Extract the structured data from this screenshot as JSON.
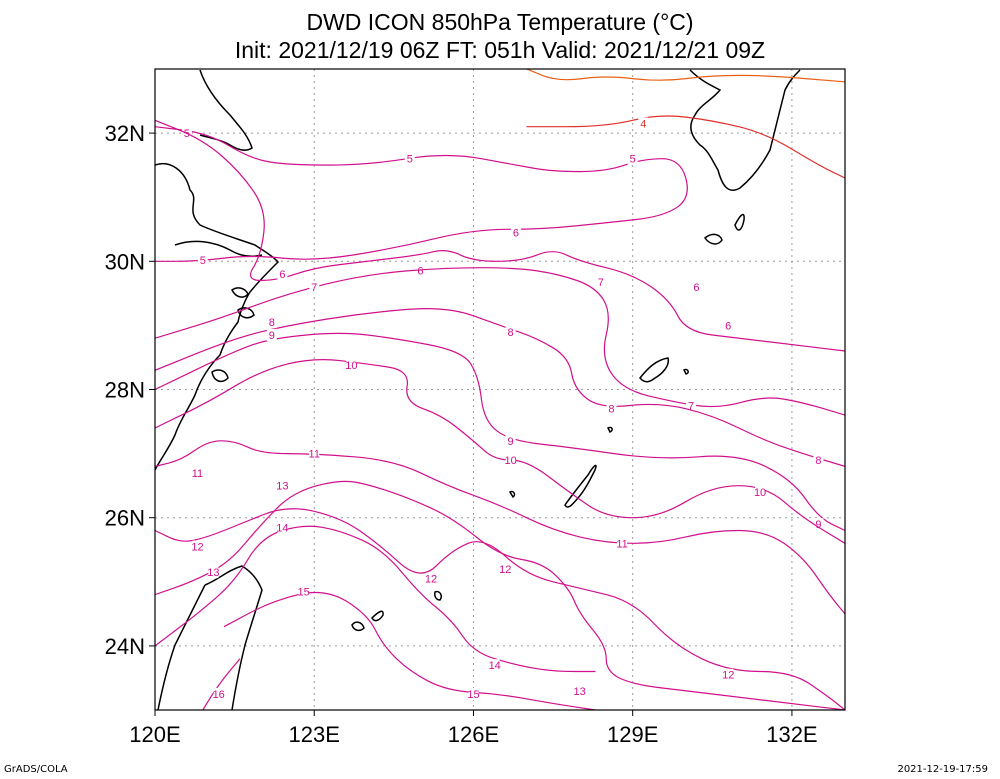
{
  "title_line1": "DWD ICON 850hPa Temperature (°C)",
  "title_line2": "Init: 2021/12/19 06Z  FT: 051h  Valid: 2021/12/21 09Z",
  "footer_left": "GrADS/COLA",
  "footer_right": "2021-12-19-17:59",
  "map": {
    "lon_range": [
      120,
      133
    ],
    "lat_range": [
      23,
      33
    ],
    "lon_ticks": [
      {
        "v": 120,
        "label": "120E"
      },
      {
        "v": 123,
        "label": "123E"
      },
      {
        "v": 126,
        "label": "126E"
      },
      {
        "v": 129,
        "label": "129E"
      },
      {
        "v": 132,
        "label": "132E"
      }
    ],
    "lat_ticks": [
      {
        "v": 24,
        "label": "24N"
      },
      {
        "v": 26,
        "label": "26N"
      },
      {
        "v": 28,
        "label": "28N"
      },
      {
        "v": 30,
        "label": "30N"
      },
      {
        "v": 32,
        "label": "32N"
      }
    ],
    "contour_color": "#d0108c",
    "warm_colors": {
      "3": "#e86018",
      "4": "#e0302c"
    },
    "isotherms": [
      {
        "v": 4,
        "pts": [
          [
            127.0,
            32.1
          ],
          [
            128.5,
            32.1
          ],
          [
            129.5,
            32.3
          ],
          [
            130.5,
            32.2
          ],
          [
            131.5,
            32.0
          ],
          [
            132.5,
            31.5
          ],
          [
            133,
            31.3
          ]
        ],
        "labels": [
          [
            129.2,
            32.15
          ]
        ]
      },
      {
        "v": 5,
        "pts": [
          [
            120,
            32.1
          ],
          [
            121,
            32.0
          ],
          [
            121.8,
            31.6
          ],
          [
            122.5,
            31.5
          ],
          [
            124,
            31.5
          ],
          [
            125.5,
            31.7
          ],
          [
            126.8,
            31.5
          ],
          [
            127.5,
            31.4
          ],
          [
            128.5,
            31.4
          ],
          [
            129.2,
            31.6
          ],
          [
            129.9,
            31.6
          ],
          [
            130.1,
            31.0
          ],
          [
            129.6,
            30.7
          ],
          [
            128.5,
            30.6
          ],
          [
            127.3,
            30.5
          ],
          [
            126.0,
            30.5
          ],
          [
            124.5,
            30.2
          ],
          [
            123.0,
            30.0
          ],
          [
            121.8,
            30.1
          ],
          [
            120.8,
            30.0
          ],
          [
            120,
            30.0
          ]
        ],
        "labels": [
          [
            120.6,
            32.0
          ],
          [
            124.8,
            31.6
          ],
          [
            129.0,
            31.6
          ],
          [
            120.9,
            30.02
          ]
        ]
      },
      {
        "v": 6,
        "pts": [
          [
            120,
            32.2
          ],
          [
            120.9,
            31.9
          ],
          [
            121.6,
            31.4
          ],
          [
            122.1,
            30.8
          ],
          [
            122.0,
            30.1
          ],
          [
            121.7,
            29.7
          ],
          [
            122.3,
            29.7
          ],
          [
            123.0,
            29.9
          ],
          [
            124.0,
            30.0
          ],
          [
            125.0,
            30.1
          ],
          [
            125.5,
            30.2
          ],
          [
            126.0,
            30.0
          ],
          [
            126.9,
            30.0
          ],
          [
            127.5,
            30.2
          ],
          [
            128.0,
            30.0
          ],
          [
            129.0,
            29.8
          ],
          [
            129.7,
            29.4
          ],
          [
            130.0,
            28.9
          ],
          [
            131.0,
            28.8
          ],
          [
            132.0,
            28.7
          ],
          [
            133,
            28.6
          ]
        ],
        "labels": [
          [
            122.4,
            29.8
          ],
          [
            125.0,
            29.86
          ],
          [
            126.8,
            30.45
          ],
          [
            130.2,
            29.6
          ],
          [
            130.8,
            29.0
          ]
        ]
      },
      {
        "v": 7,
        "pts": [
          [
            120,
            28.8
          ],
          [
            121.2,
            29.1
          ],
          [
            122.5,
            29.5
          ],
          [
            124.0,
            29.8
          ],
          [
            125.5,
            29.9
          ],
          [
            126.8,
            29.9
          ],
          [
            127.6,
            29.8
          ],
          [
            128.3,
            29.6
          ],
          [
            128.6,
            29.2
          ],
          [
            128.4,
            28.5
          ],
          [
            128.8,
            28.0
          ],
          [
            129.8,
            27.8
          ],
          [
            130.6,
            27.7
          ],
          [
            131.5,
            27.9
          ],
          [
            132.2,
            27.8
          ],
          [
            133,
            27.6
          ]
        ],
        "labels": [
          [
            123.0,
            29.6
          ],
          [
            128.4,
            29.68
          ],
          [
            130.1,
            27.75
          ]
        ]
      },
      {
        "v": 8,
        "pts": [
          [
            120,
            28.3
          ],
          [
            121.5,
            28.8
          ],
          [
            122.5,
            29.0
          ],
          [
            124.0,
            29.2
          ],
          [
            125.5,
            29.3
          ],
          [
            126.5,
            29.0
          ],
          [
            127.2,
            28.8
          ],
          [
            127.8,
            28.5
          ],
          [
            127.9,
            28.0
          ],
          [
            128.4,
            27.7
          ],
          [
            129.5,
            27.8
          ],
          [
            130.5,
            27.6
          ],
          [
            131.5,
            27.2
          ],
          [
            132.2,
            27.0
          ],
          [
            133,
            26.8
          ]
        ],
        "labels": [
          [
            122.2,
            29.05
          ],
          [
            126.7,
            28.9
          ],
          [
            128.6,
            27.7
          ],
          [
            132.5,
            26.9
          ]
        ]
      },
      {
        "v": 9,
        "pts": [
          [
            120,
            28.0
          ],
          [
            121.5,
            28.6
          ],
          [
            122.2,
            28.8
          ],
          [
            123.5,
            28.9
          ],
          [
            124.5,
            28.8
          ],
          [
            125.8,
            28.6
          ],
          [
            126.1,
            28.2
          ],
          [
            126.2,
            27.5
          ],
          [
            126.7,
            27.2
          ],
          [
            127.8,
            27.1
          ],
          [
            129.5,
            26.9
          ],
          [
            131.0,
            27.0
          ],
          [
            132.0,
            26.6
          ],
          [
            132.5,
            26.0
          ],
          [
            133,
            25.8
          ]
        ],
        "labels": [
          [
            122.2,
            28.85
          ],
          [
            126.7,
            27.2
          ],
          [
            132.5,
            25.9
          ]
        ]
      },
      {
        "v": 10,
        "pts": [
          [
            120,
            27.4
          ],
          [
            121.0,
            27.8
          ],
          [
            122.0,
            28.3
          ],
          [
            123.0,
            28.5
          ],
          [
            124.0,
            28.4
          ],
          [
            124.8,
            28.3
          ],
          [
            124.7,
            27.8
          ],
          [
            125.4,
            27.6
          ],
          [
            126.0,
            27.2
          ],
          [
            126.4,
            26.9
          ],
          [
            127.0,
            26.9
          ],
          [
            127.8,
            26.4
          ],
          [
            128.5,
            26.0
          ],
          [
            129.5,
            26.0
          ],
          [
            130.5,
            26.5
          ],
          [
            131.5,
            26.5
          ],
          [
            132.2,
            26.0
          ],
          [
            133,
            25.6
          ]
        ],
        "labels": [
          [
            123.7,
            28.38
          ],
          [
            126.7,
            26.9
          ],
          [
            131.4,
            26.4
          ]
        ]
      },
      {
        "v": 11,
        "pts": [
          [
            120,
            26.8
          ],
          [
            120.5,
            26.9
          ],
          [
            121.0,
            27.2
          ],
          [
            121.5,
            27.2
          ],
          [
            122.0,
            27.0
          ],
          [
            123.0,
            27.0
          ],
          [
            124.5,
            26.9
          ],
          [
            125.5,
            26.5
          ],
          [
            126.5,
            26.2
          ],
          [
            127.5,
            25.8
          ],
          [
            128.5,
            25.6
          ],
          [
            129.5,
            25.6
          ],
          [
            130.5,
            25.8
          ],
          [
            131.5,
            25.8
          ],
          [
            132.2,
            25.4
          ],
          [
            132.7,
            24.8
          ],
          [
            133,
            24.5
          ]
        ],
        "labels": [
          [
            120.8,
            26.7
          ],
          [
            123.0,
            27.0
          ],
          [
            128.8,
            25.6
          ]
        ]
      },
      {
        "v": 12,
        "pts": [
          [
            120,
            25.8
          ],
          [
            120.5,
            25.6
          ],
          [
            121.0,
            25.7
          ],
          [
            121.6,
            25.9
          ],
          [
            122.5,
            26.2
          ],
          [
            123.5,
            26.0
          ],
          [
            124.2,
            25.6
          ],
          [
            125.0,
            25.0
          ],
          [
            125.6,
            25.5
          ],
          [
            126.2,
            25.7
          ],
          [
            127.0,
            25.1
          ],
          [
            128.0,
            24.9
          ],
          [
            129.0,
            24.7
          ],
          [
            129.8,
            24.0
          ],
          [
            130.8,
            23.6
          ],
          [
            132.0,
            23.6
          ],
          [
            132.7,
            23.2
          ],
          [
            133,
            23.0
          ]
        ],
        "labels": [
          [
            120.8,
            25.55
          ],
          [
            125.2,
            25.05
          ],
          [
            126.6,
            25.2
          ],
          [
            130.8,
            23.55
          ]
        ]
      },
      {
        "v": 13,
        "pts": [
          [
            120,
            24.8
          ],
          [
            120.7,
            25.0
          ],
          [
            121.4,
            25.3
          ],
          [
            122.0,
            25.9
          ],
          [
            122.6,
            26.4
          ],
          [
            123.5,
            26.6
          ],
          [
            124.1,
            26.5
          ],
          [
            124.8,
            26.3
          ],
          [
            125.6,
            26.0
          ],
          [
            126.5,
            25.4
          ],
          [
            127.3,
            25.3
          ],
          [
            127.8,
            24.9
          ],
          [
            128.0,
            24.5
          ],
          [
            128.5,
            24.0
          ],
          [
            128.5,
            23.6
          ],
          [
            129.0,
            23.4
          ],
          [
            130.0,
            23.3
          ],
          [
            131.0,
            23.2
          ],
          [
            132.0,
            23.1
          ],
          [
            133,
            23.0
          ]
        ],
        "labels": [
          [
            121.1,
            25.15
          ],
          [
            122.4,
            26.5
          ],
          [
            128.0,
            23.3
          ]
        ]
      },
      {
        "v": 14,
        "pts": [
          [
            120,
            24.0
          ],
          [
            120.8,
            24.5
          ],
          [
            121.5,
            25.0
          ],
          [
            122.0,
            25.7
          ],
          [
            122.8,
            25.9
          ],
          [
            123.5,
            25.8
          ],
          [
            124.3,
            25.5
          ],
          [
            125.0,
            24.8
          ],
          [
            125.6,
            24.4
          ],
          [
            126.0,
            23.9
          ],
          [
            126.8,
            23.7
          ],
          [
            127.5,
            23.6
          ],
          [
            128.3,
            23.6
          ]
        ],
        "labels": [
          [
            122.4,
            25.85
          ],
          [
            126.4,
            23.7
          ]
        ]
      },
      {
        "v": 15,
        "pts": [
          [
            121.3,
            24.3
          ],
          [
            122.2,
            24.7
          ],
          [
            123.2,
            24.9
          ],
          [
            124.0,
            24.5
          ],
          [
            124.3,
            24.0
          ],
          [
            124.8,
            23.6
          ],
          [
            125.5,
            23.3
          ],
          [
            126.5,
            23.25
          ],
          [
            127.5,
            23.1
          ],
          [
            128.3,
            23.0
          ]
        ],
        "labels": [
          [
            122.8,
            24.85
          ],
          [
            126.0,
            23.25
          ]
        ]
      },
      {
        "v": 16,
        "pts": [
          [
            120.9,
            23.0
          ],
          [
            121.2,
            23.4
          ],
          [
            121.6,
            23.8
          ]
        ],
        "labels": [
          [
            121.2,
            23.25
          ]
        ]
      },
      {
        "v": 3,
        "pts": [
          [
            127.0,
            33.0
          ],
          [
            127.6,
            32.8
          ],
          [
            128.5,
            32.9
          ],
          [
            129.5,
            32.8
          ],
          [
            130.5,
            32.9
          ],
          [
            131.5,
            32.9
          ],
          [
            133,
            32.8
          ]
        ],
        "labels": []
      }
    ]
  }
}
